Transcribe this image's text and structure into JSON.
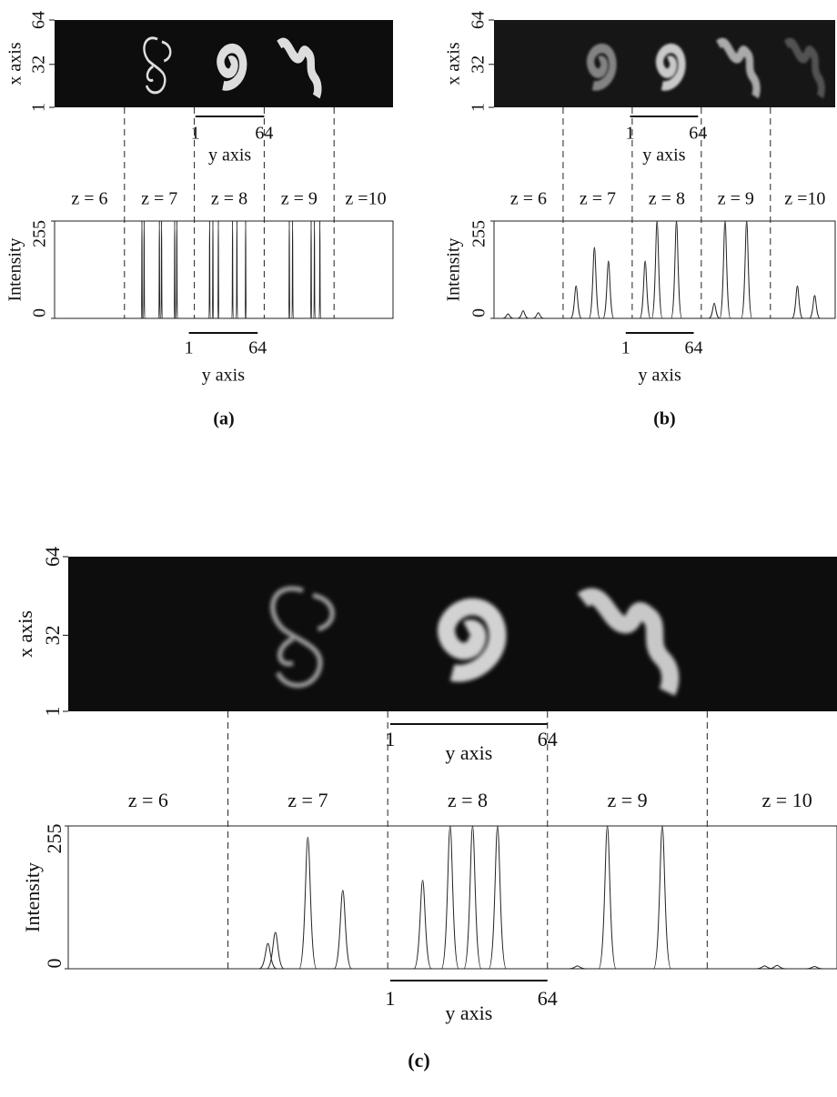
{
  "panels": [
    {
      "caption": "(a)",
      "image": {
        "ylabel": "x axis",
        "yticks": [
          64,
          32,
          1
        ]
      },
      "top_bar": {
        "start": 1,
        "end": 64,
        "label": "y axis"
      },
      "slices": [
        "z = 6",
        "z = 7",
        "z = 8",
        "z = 9",
        "z =10"
      ],
      "chart_data": {
        "type": "line",
        "ylabel": "Intensity",
        "ylim": [
          0,
          255
        ],
        "yticks": [
          0,
          255
        ],
        "xlim": [
          0,
          310
        ],
        "boundaries": [
          64,
          128,
          192,
          256
        ],
        "peaks": [
          {
            "x": 80,
            "height": 255
          },
          {
            "x": 82,
            "height": 255
          },
          {
            "x": 96,
            "height": 255
          },
          {
            "x": 98,
            "height": 255
          },
          {
            "x": 110,
            "height": 255
          },
          {
            "x": 112,
            "height": 255
          },
          {
            "x": 142,
            "height": 255
          },
          {
            "x": 145,
            "height": 255
          },
          {
            "x": 150,
            "height": 255
          },
          {
            "x": 163,
            "height": 255
          },
          {
            "x": 167,
            "height": 255
          },
          {
            "x": 175,
            "height": 255
          },
          {
            "x": 215,
            "height": 255
          },
          {
            "x": 218,
            "height": 255
          },
          {
            "x": 235,
            "height": 255
          },
          {
            "x": 238,
            "height": 255
          },
          {
            "x": 243,
            "height": 255
          }
        ]
      },
      "bottom_bar": {
        "start": 1,
        "end": 64,
        "label": "y axis"
      }
    },
    {
      "caption": "(b)",
      "image": {
        "ylabel": "x axis",
        "yticks": [
          64,
          32,
          1
        ]
      },
      "top_bar": {
        "start": 1,
        "end": 64,
        "label": "y axis"
      },
      "slices": [
        "z = 6",
        "z = 7",
        "z = 8",
        "z = 9",
        "z =10"
      ],
      "chart_data": {
        "type": "line",
        "ylabel": "Intensity",
        "ylim": [
          0,
          255
        ],
        "yticks": [
          0,
          255
        ],
        "xlim": [
          0,
          316
        ],
        "boundaries": [
          64,
          128,
          192,
          256
        ],
        "peaks": [
          {
            "x": 13,
            "height": 12
          },
          {
            "x": 27,
            "height": 20
          },
          {
            "x": 41,
            "height": 15
          },
          {
            "x": 76,
            "height": 85
          },
          {
            "x": 93,
            "height": 186
          },
          {
            "x": 106,
            "height": 150
          },
          {
            "x": 140,
            "height": 150
          },
          {
            "x": 151,
            "height": 255
          },
          {
            "x": 169,
            "height": 255
          },
          {
            "x": 204,
            "height": 40
          },
          {
            "x": 214,
            "height": 255
          },
          {
            "x": 234,
            "height": 255
          },
          {
            "x": 281,
            "height": 85
          },
          {
            "x": 297,
            "height": 60
          }
        ]
      },
      "bottom_bar": {
        "start": 1,
        "end": 64,
        "label": "y axis"
      }
    },
    {
      "caption": "(c)",
      "image": {
        "ylabel": "x axis",
        "yticks": [
          64,
          32,
          1
        ]
      },
      "top_bar": {
        "start": 1,
        "end": 64,
        "label": "y axis"
      },
      "slices": [
        "z = 6",
        "z = 7",
        "z =  8",
        "z = 9",
        "z = 10"
      ],
      "chart_data": {
        "type": "line",
        "ylabel": "Intensity",
        "ylim": [
          0,
          255
        ],
        "yticks": [
          0,
          255
        ],
        "xlim": [
          0,
          308
        ],
        "boundaries": [
          64,
          128,
          192,
          256
        ],
        "peaks": [
          {
            "x": 80,
            "height": 45
          },
          {
            "x": 83,
            "height": 65
          },
          {
            "x": 96,
            "height": 235
          },
          {
            "x": 110,
            "height": 140
          },
          {
            "x": 142,
            "height": 158
          },
          {
            "x": 153,
            "height": 255
          },
          {
            "x": 162,
            "height": 255
          },
          {
            "x": 172,
            "height": 255
          },
          {
            "x": 204,
            "height": 5
          },
          {
            "x": 216,
            "height": 255
          },
          {
            "x": 238,
            "height": 255
          },
          {
            "x": 279,
            "height": 5
          },
          {
            "x": 284,
            "height": 6
          },
          {
            "x": 299,
            "height": 4
          }
        ]
      },
      "bottom_bar": {
        "start": 1,
        "end": 64,
        "label": "y axis"
      }
    }
  ]
}
